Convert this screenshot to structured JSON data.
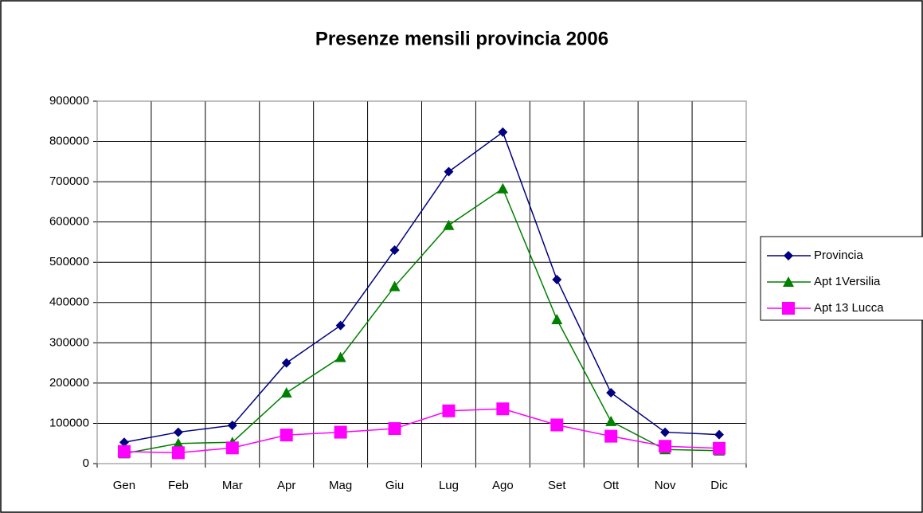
{
  "chart_data": {
    "type": "line",
    "title": "Presenze mensili provincia 2006",
    "categories": [
      "Gen",
      "Feb",
      "Mar",
      "Apr",
      "Mag",
      "Giu",
      "Lug",
      "Ago",
      "Set",
      "Ott",
      "Nov",
      "Dic"
    ],
    "series": [
      {
        "name": "Provincia",
        "color": "#000080",
        "marker": "diamond",
        "values": [
          53000,
          78000,
          95000,
          250000,
          343000,
          530000,
          725000,
          823000,
          457000,
          176000,
          78000,
          72000
        ]
      },
      {
        "name": "Apt 1Versilia",
        "color": "#008000",
        "marker": "triangle",
        "values": [
          25000,
          50000,
          53000,
          176000,
          264000,
          440000,
          592000,
          683000,
          358000,
          105000,
          35000,
          32000
        ]
      },
      {
        "name": "Apt 13 Lucca",
        "color": "#ff00ff",
        "marker": "square",
        "values": [
          30000,
          27000,
          39000,
          71000,
          78000,
          87000,
          131000,
          136000,
          96000,
          68000,
          43000,
          38000
        ]
      }
    ],
    "ylim": [
      0,
      900000
    ],
    "yticks": [
      0,
      100000,
      200000,
      300000,
      400000,
      500000,
      600000,
      700000,
      800000,
      900000
    ],
    "grid": true,
    "legend": "right"
  }
}
